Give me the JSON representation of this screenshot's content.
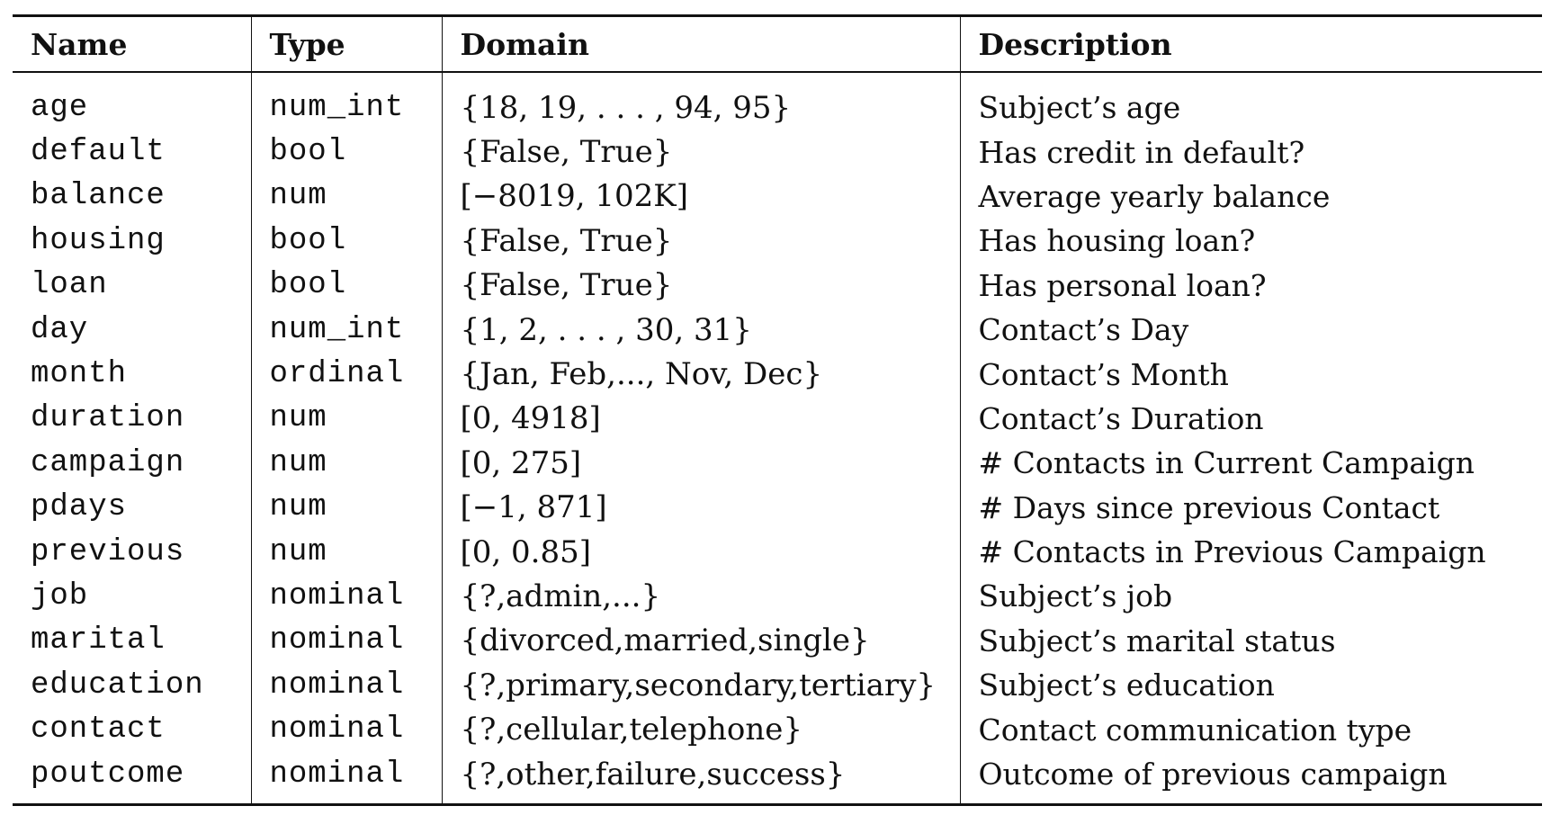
{
  "headers": {
    "name": "Name",
    "type": "Type",
    "domain": "Domain",
    "description": "Description"
  },
  "rows": [
    {
      "name": "age",
      "type": "num_int",
      "domain": "{18, 19, . . . , 94, 95}",
      "description": "Subject’s age"
    },
    {
      "name": "default",
      "type": "bool",
      "domain": "{False, True}",
      "description": "Has credit in default?"
    },
    {
      "name": "balance",
      "type": "num",
      "domain": "[−8019, 102K]",
      "description": "Average yearly balance"
    },
    {
      "name": "housing",
      "type": "bool",
      "domain": "{False, True}",
      "description": "Has housing loan?"
    },
    {
      "name": "loan",
      "type": "bool",
      "domain": "{False, True}",
      "description": "Has personal loan?"
    },
    {
      "name": "day",
      "type": "num_int",
      "domain": "{1, 2, . . . , 30, 31}",
      "description": "Contact’s Day"
    },
    {
      "name": "month",
      "type": "ordinal",
      "domain": "{Jan, Feb,..., Nov, Dec}",
      "description": "Contact’s Month"
    },
    {
      "name": "duration",
      "type": "num",
      "domain": "[0, 4918]",
      "description": "Contact’s Duration"
    },
    {
      "name": "campaign",
      "type": "num",
      "domain": "[0, 275]",
      "description": "# Contacts in Current Campaign"
    },
    {
      "name": "pdays",
      "type": "num",
      "domain": "[−1, 871]",
      "description": "# Days since previous Contact"
    },
    {
      "name": "previous",
      "type": "num",
      "domain": "[0, 0.85]",
      "description": "# Contacts in Previous Campaign"
    },
    {
      "name": "job",
      "type": "nominal",
      "domain": "{?,admin,...}",
      "description": "Subject’s job"
    },
    {
      "name": "marital",
      "type": "nominal",
      "domain": "{divorced,married,single}",
      "description": "Subject’s marital status"
    },
    {
      "name": "education",
      "type": "nominal",
      "domain": "{?,primary,secondary,tertiary}",
      "description": "Subject’s education"
    },
    {
      "name": "contact",
      "type": "nominal",
      "domain": "{?,cellular,telephone}",
      "description": "Contact communication type"
    },
    {
      "name": "poutcome",
      "type": "nominal",
      "domain": "{?,other,failure,success}",
      "description": "Outcome of previous campaign"
    }
  ]
}
